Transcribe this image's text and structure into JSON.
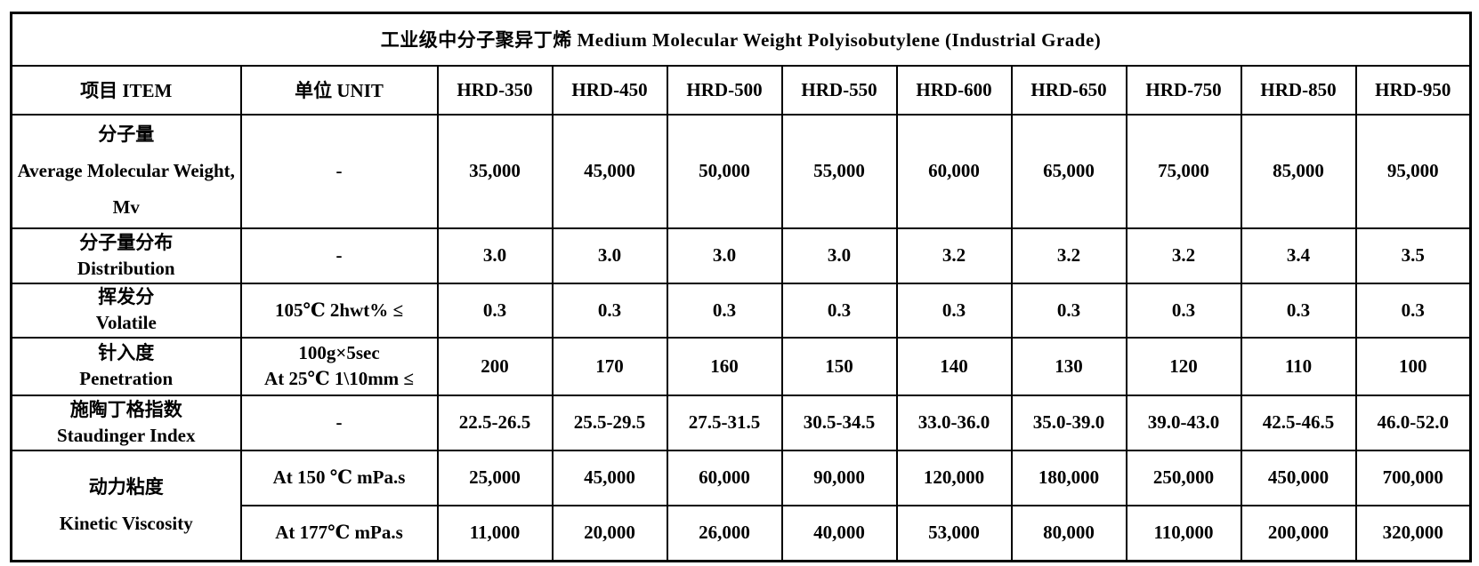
{
  "title": "工业级中分子聚异丁烯  Medium Molecular Weight Polyisobutylene (Industrial Grade)",
  "table": {
    "item_header": "项目 ITEM",
    "unit_header": "单位  UNIT",
    "grades": [
      "HRD-350",
      "HRD-450",
      "HRD-500",
      "HRD-550",
      "HRD-600",
      "HRD-650",
      "HRD-750",
      "HRD-850",
      "HRD-950"
    ],
    "rows": [
      {
        "item": [
          "分子量",
          "Average Molecular Weight,",
          "Mv"
        ],
        "unit": [
          "-"
        ],
        "values": [
          "35,000",
          "45,000",
          "50,000",
          "55,000",
          "60,000",
          "65,000",
          "75,000",
          "85,000",
          "95,000"
        ]
      },
      {
        "item": [
          "分子量分布",
          "Distribution"
        ],
        "unit": [
          "-"
        ],
        "values": [
          "3.0",
          "3.0",
          "3.0",
          "3.0",
          "3.2",
          "3.2",
          "3.2",
          "3.4",
          "3.5"
        ]
      },
      {
        "item": [
          "挥发分",
          "Volatile"
        ],
        "unit": [
          "105℃ 2hwt% ≤"
        ],
        "values": [
          "0.3",
          "0.3",
          "0.3",
          "0.3",
          "0.3",
          "0.3",
          "0.3",
          "0.3",
          "0.3"
        ]
      },
      {
        "item": [
          "针入度",
          "Penetration"
        ],
        "unit": [
          "100g×5sec",
          "At 25℃  1\\10mm ≤"
        ],
        "values": [
          "200",
          "170",
          "160",
          "150",
          "140",
          "130",
          "120",
          "110",
          "100"
        ]
      },
      {
        "item": [
          "施陶丁格指数",
          "Staudinger Index"
        ],
        "unit": [
          "-"
        ],
        "values": [
          "22.5-26.5",
          "25.5-29.5",
          "27.5-31.5",
          "30.5-34.5",
          "33.0-36.0",
          "35.0-39.0",
          "39.0-43.0",
          "42.5-46.5",
          "46.0-52.0"
        ]
      },
      {
        "item": [
          "动力粘度",
          "Kinetic Viscosity"
        ],
        "rowspan": 2,
        "unit": [
          "At 150 ℃ mPa.s"
        ],
        "values": [
          "25,000",
          "45,000",
          "60,000",
          "90,000",
          "120,000",
          "180,000",
          "250,000",
          "450,000",
          "700,000"
        ]
      },
      {
        "item": null,
        "unit": [
          "At 177℃  mPa.s"
        ],
        "values": [
          "11,000",
          "20,000",
          "26,000",
          "40,000",
          "53,000",
          "80,000",
          "110,000",
          "200,000",
          "320,000"
        ]
      }
    ]
  },
  "colors": {
    "border": "#000000",
    "text": "#000000",
    "background": "#ffffff"
  }
}
